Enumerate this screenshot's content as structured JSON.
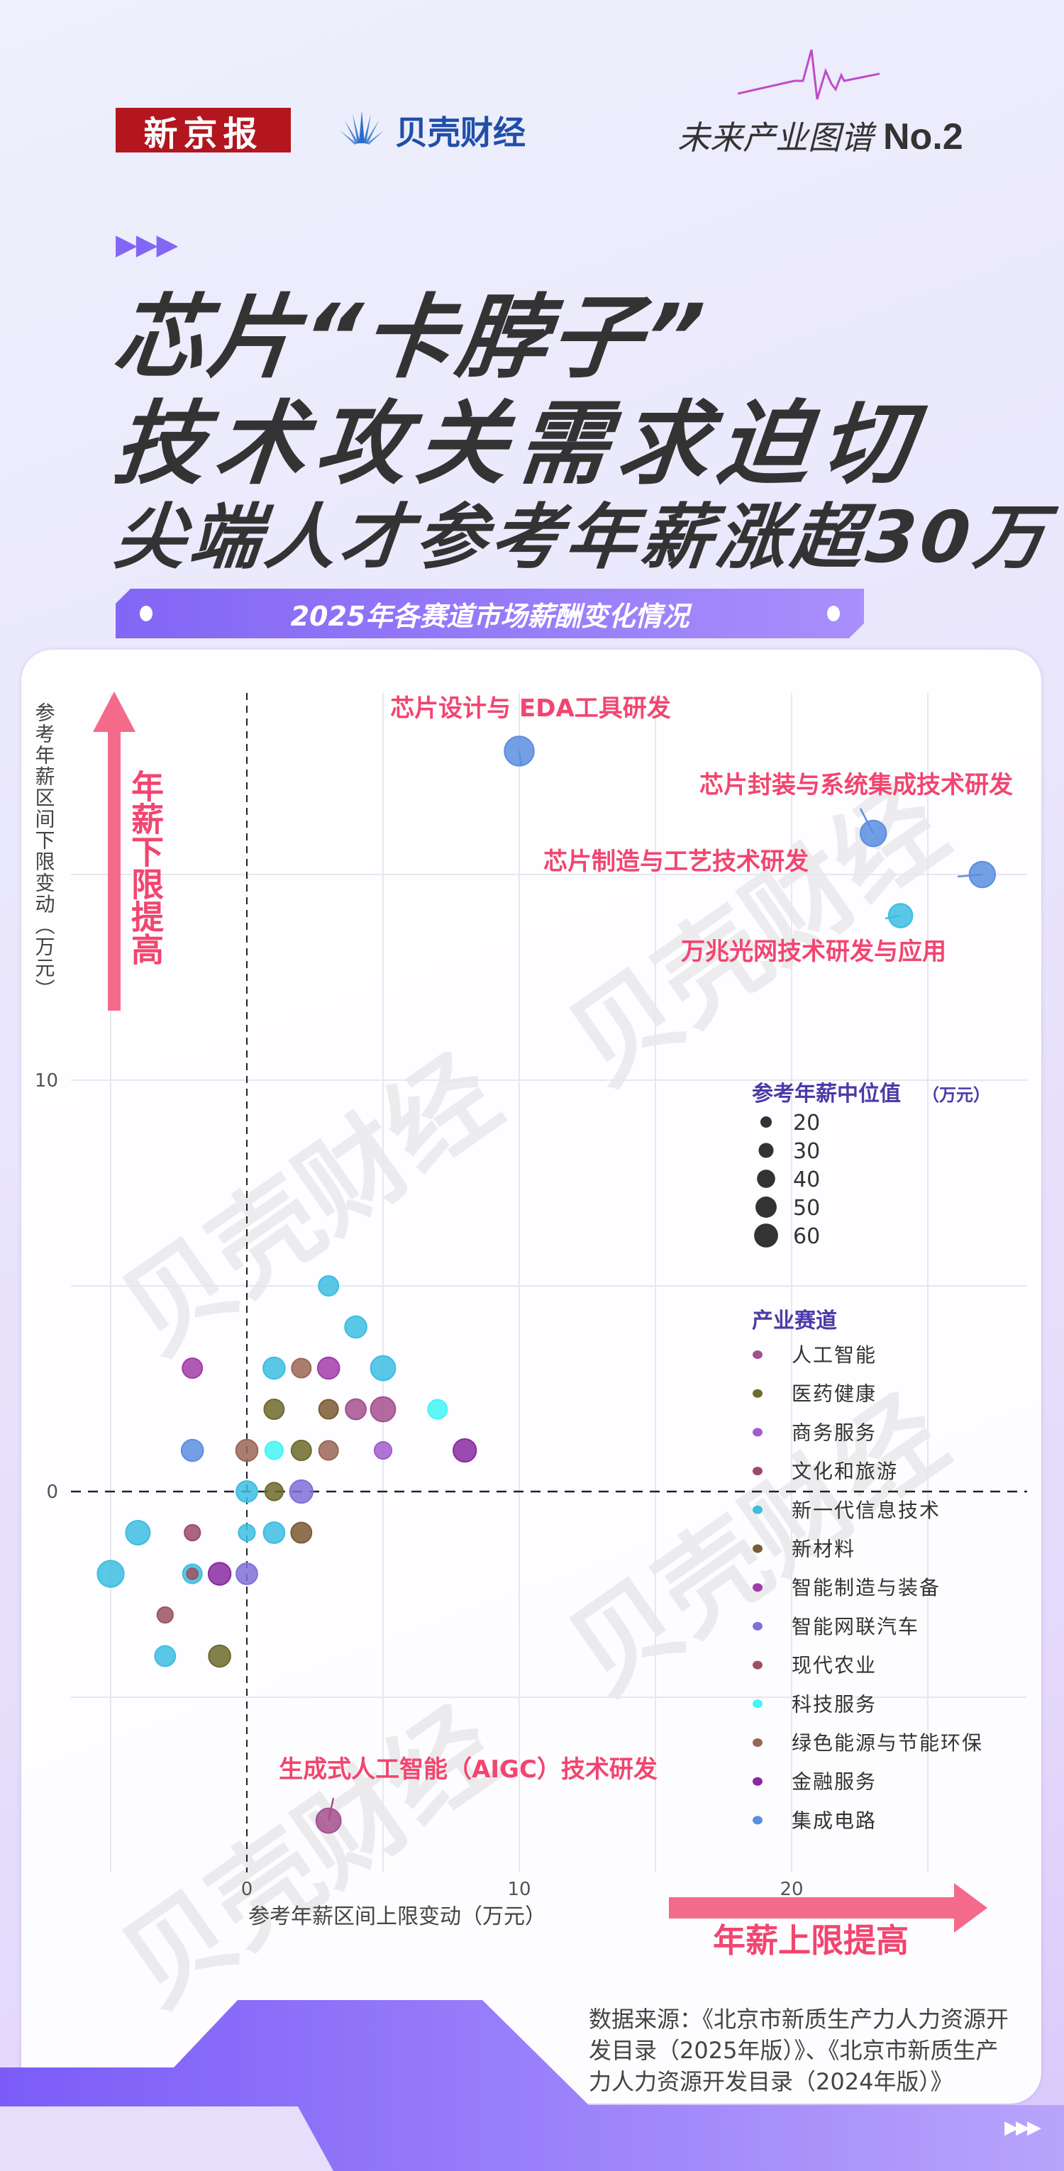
{
  "header": {
    "logo_xjb": "新京报",
    "logo_bk": "贝壳财经",
    "series": "未来产业图谱",
    "series_no": "No.2"
  },
  "title": {
    "line1": "芯片“卡脖子”",
    "line2": "技术攻关需求迫切",
    "line3": "尖端人才参考年薪涨超30万"
  },
  "subtitle": "2025年各赛道市场薪酬变化情况",
  "watermark": "贝壳财经",
  "source": "数据来源：《北京市新质生产力人力资源开发目录（2025年版）》、《北京市新质生产力人力资源开发目录（2024年版）》",
  "colors": {
    "accent": "#f2456f",
    "arrow": "#f46a8a",
    "legend_title": "#4b3aa8",
    "brand_purple": "#8266f5"
  },
  "chart_data": {
    "type": "scatter",
    "bubble": true,
    "xlabel": "参考年薪区间上限变动（万元）",
    "ylabel": "参考年薪区间下限变动（万元）",
    "x_ticks": [
      0,
      10,
      20
    ],
    "y_ticks": [
      0,
      10
    ],
    "xlim": [
      -7.5,
      28.5
    ],
    "ylim": [
      -9.3,
      19.5
    ],
    "grid": true,
    "arrow_up_label": "年薪下限提高",
    "arrow_right_label": "年薪上限提高",
    "size_legend": {
      "title": "参考年薪中位值",
      "unit": "（万元）",
      "values": [
        20,
        30,
        40,
        50,
        60
      ]
    },
    "category_legend_title": "产业赛道",
    "categories": [
      {
        "name": "人工智能",
        "color": "#a4508e"
      },
      {
        "name": "医药健康",
        "color": "#6f6a2c"
      },
      {
        "name": "商务服务",
        "color": "#a25ccc"
      },
      {
        "name": "文化和旅游",
        "color": "#9c4a6c"
      },
      {
        "name": "新一代信息技术",
        "color": "#3dbde2"
      },
      {
        "name": "新材料",
        "color": "#7b5b32"
      },
      {
        "name": "智能制造与装备",
        "color": "#a23ca8"
      },
      {
        "name": "智能网联汽车",
        "color": "#8070d8"
      },
      {
        "name": "现代农业",
        "color": "#9c5262"
      },
      {
        "name": "科技服务",
        "color": "#45f4f4"
      },
      {
        "name": "绿色能源与节能环保",
        "color": "#9a6657"
      },
      {
        "name": "金融服务",
        "color": "#8a2aa2"
      },
      {
        "name": "集成电路",
        "color": "#5a8ee0"
      }
    ],
    "points": [
      {
        "x": 10,
        "y": 18,
        "size": 75,
        "category": "集成电路",
        "label": "芯片设计与 EDA工具研发"
      },
      {
        "x": 23,
        "y": 16,
        "size": 62,
        "category": "集成电路",
        "label": "芯片封装与系统集成技术研发"
      },
      {
        "x": 27,
        "y": 15,
        "size": 62,
        "category": "集成电路",
        "label": "芯片制造与工艺技术研发"
      },
      {
        "x": 24,
        "y": 14,
        "size": 55,
        "category": "新一代信息技术",
        "label": "万兆光网技术研发与应用"
      },
      {
        "x": 3,
        "y": -8,
        "size": 58,
        "category": "人工智能",
        "label": "生成式人工智能（AIGC）技术研发"
      },
      {
        "x": 3,
        "y": 5,
        "size": 42,
        "category": "新一代信息技术"
      },
      {
        "x": 4,
        "y": 4,
        "size": 48,
        "category": "新一代信息技术"
      },
      {
        "x": -2,
        "y": 3,
        "size": 42,
        "category": "智能制造与装备"
      },
      {
        "x": 1,
        "y": 3,
        "size": 48,
        "category": "新一代信息技术"
      },
      {
        "x": 2,
        "y": 3,
        "size": 40,
        "category": "绿色能源与节能环保"
      },
      {
        "x": 3,
        "y": 3,
        "size": 48,
        "category": "智能制造与装备"
      },
      {
        "x": 5,
        "y": 3,
        "size": 58,
        "category": "新一代信息技术"
      },
      {
        "x": 1,
        "y": 2,
        "size": 42,
        "category": "医药健康"
      },
      {
        "x": 3,
        "y": 2,
        "size": 40,
        "category": "新材料"
      },
      {
        "x": 4,
        "y": 2,
        "size": 44,
        "category": "人工智能"
      },
      {
        "x": 5,
        "y": 2,
        "size": 58,
        "category": "人工智能"
      },
      {
        "x": 7,
        "y": 2,
        "size": 40,
        "category": "科技服务"
      },
      {
        "x": -2,
        "y": 1,
        "size": 48,
        "category": "集成电路"
      },
      {
        "x": 0,
        "y": 1,
        "size": 48,
        "category": "绿色能源与节能环保"
      },
      {
        "x": 1,
        "y": 1,
        "size": 36,
        "category": "科技服务"
      },
      {
        "x": 2,
        "y": 1,
        "size": 42,
        "category": "医药健康"
      },
      {
        "x": 3,
        "y": 1,
        "size": 40,
        "category": "绿色能源与节能环保"
      },
      {
        "x": 5,
        "y": 1,
        "size": 34,
        "category": "商务服务"
      },
      {
        "x": 8,
        "y": 1,
        "size": 52,
        "category": "金融服务"
      },
      {
        "x": 0,
        "y": 0,
        "size": 46,
        "category": "新一代信息技术"
      },
      {
        "x": 1,
        "y": 0,
        "size": 36,
        "category": "医药健康"
      },
      {
        "x": 2,
        "y": 0,
        "size": 52,
        "category": "智能网联汽车"
      },
      {
        "x": -4,
        "y": -1,
        "size": 56,
        "category": "新一代信息技术"
      },
      {
        "x": -2,
        "y": -1,
        "size": 30,
        "category": "文化和旅游"
      },
      {
        "x": 0,
        "y": -1,
        "size": 32,
        "category": "新一代信息技术"
      },
      {
        "x": 1,
        "y": -1,
        "size": 46,
        "category": "新一代信息技术"
      },
      {
        "x": 2,
        "y": -1,
        "size": 44,
        "category": "新材料"
      },
      {
        "x": -5,
        "y": -2,
        "size": 64,
        "category": "新一代信息技术"
      },
      {
        "x": -2,
        "y": -2,
        "size": 40,
        "category": "新一代信息技术"
      },
      {
        "x": -2,
        "y": -2,
        "size": 18,
        "category": "现代农业"
      },
      {
        "x": -1,
        "y": -2,
        "size": 50,
        "category": "金融服务"
      },
      {
        "x": 0,
        "y": -2,
        "size": 46,
        "category": "智能网联汽车"
      },
      {
        "x": -3,
        "y": -3,
        "size": 30,
        "category": "现代农业"
      },
      {
        "x": -3,
        "y": -4,
        "size": 44,
        "category": "新一代信息技术"
      },
      {
        "x": -1,
        "y": -4,
        "size": 48,
        "category": "医药健康"
      }
    ]
  }
}
